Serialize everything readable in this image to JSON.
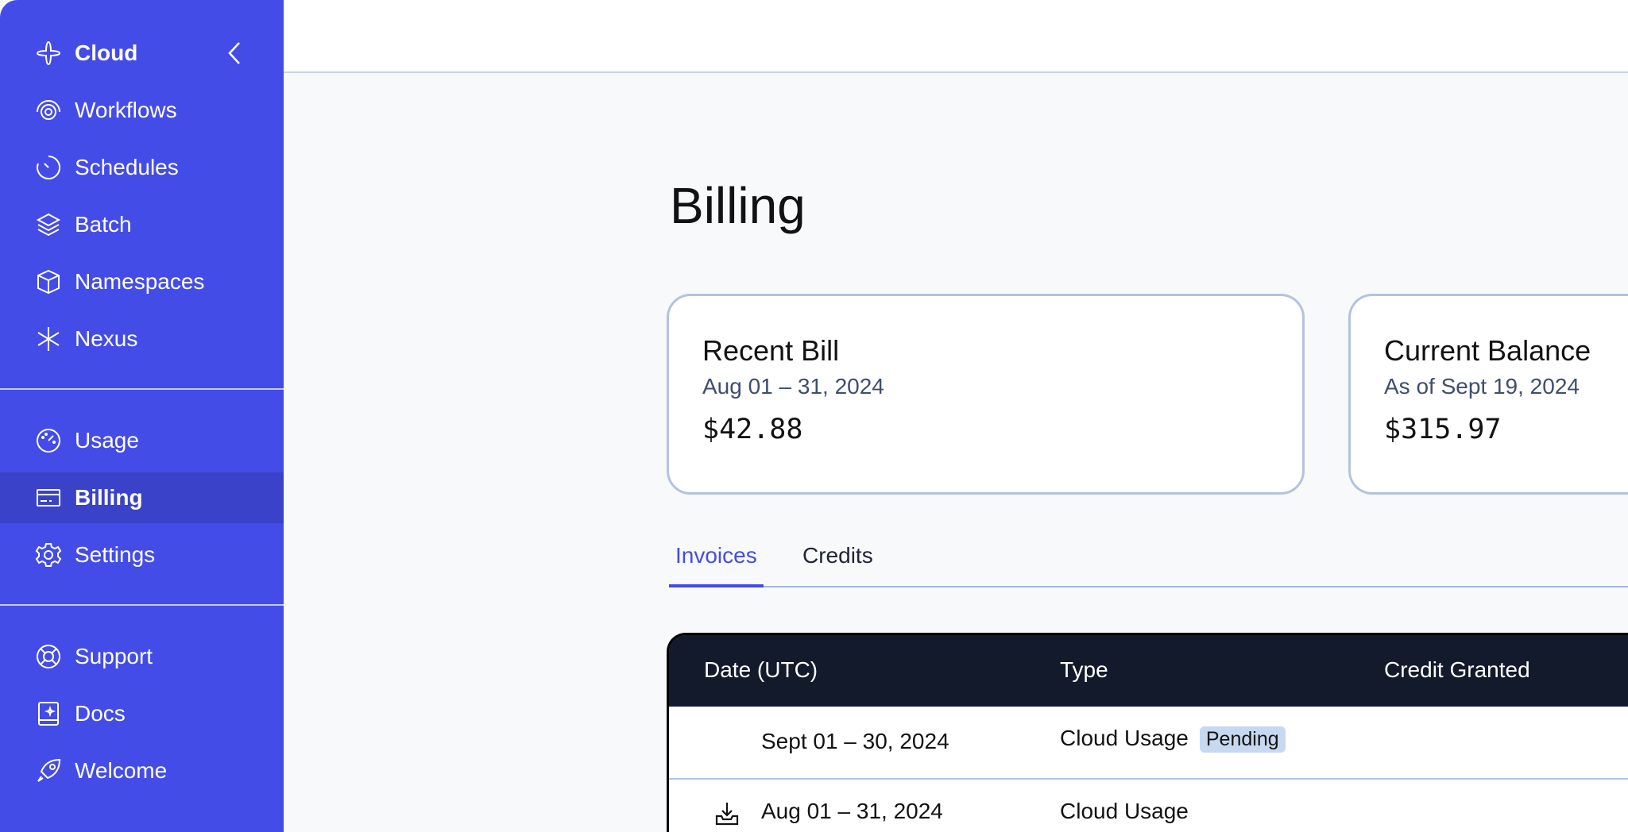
{
  "sidebar": {
    "header": {
      "label": "Cloud",
      "icon": "cloud-logo-icon",
      "collapse_icon": "chevron-left-icon"
    },
    "items": [
      {
        "label": "Workflows",
        "icon": "workflows-icon"
      },
      {
        "label": "Schedules",
        "icon": "schedules-icon"
      },
      {
        "label": "Batch",
        "icon": "batch-icon"
      },
      {
        "label": "Namespaces",
        "icon": "namespaces-icon"
      },
      {
        "label": "Nexus",
        "icon": "nexus-icon"
      },
      {
        "label": "Usage",
        "icon": "usage-icon"
      },
      {
        "label": "Billing",
        "icon": "billing-icon",
        "active": true
      },
      {
        "label": "Settings",
        "icon": "settings-icon"
      },
      {
        "label": "Support",
        "icon": "support-icon"
      },
      {
        "label": "Docs",
        "icon": "docs-icon"
      },
      {
        "label": "Welcome",
        "icon": "welcome-icon"
      }
    ],
    "colors": {
      "bg": "#444ce7",
      "active": "#3a42c9"
    }
  },
  "page": {
    "title": "Billing"
  },
  "cards": [
    {
      "title": "Recent Bill",
      "subtitle": "Aug 01 – 31, 2024",
      "amount": "$42.88"
    },
    {
      "title": "Current Balance",
      "subtitle": "As of Sept 19, 2024",
      "amount": "$315.97"
    }
  ],
  "tabs": [
    {
      "label": "Invoices",
      "active": true
    },
    {
      "label": "Credits",
      "active": false
    }
  ],
  "table": {
    "columns": [
      "Date (UTC)",
      "Type",
      "Credit Granted"
    ],
    "rows": [
      {
        "date": "Sept 01 – 30, 2024",
        "type": "Cloud Usage",
        "badge": "Pending"
      },
      {
        "date": "Aug 01 – 31, 2024",
        "type": "Cloud Usage",
        "icon": "download-icon"
      }
    ]
  }
}
